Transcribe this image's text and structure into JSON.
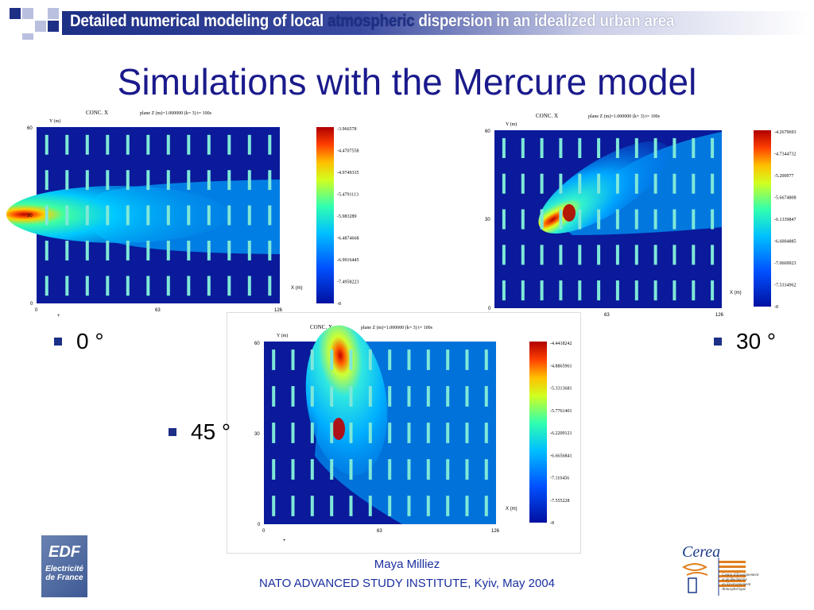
{
  "header": {
    "title_part1": "Detailed numerical modeling of local ",
    "title_part2": "atmospheric",
    "title_part3": " dispersion in an idealized urban area"
  },
  "title": "Simulations with the Mercure model",
  "bullets": [
    "0 °",
    "30 °",
    "45 °"
  ],
  "footer": {
    "author": "Maya Milliez",
    "event": "NATO ADVANCED STUDY INSTITUTE, Kyiv, May 2004"
  },
  "logos": {
    "edf_big": "EDF",
    "edf_small": "Electricité de France",
    "cerea_name": "Cerea",
    "cerea_desc": "Centre d'Enseignement\net de Recherche\nen Environnement\nAtmosphérique"
  },
  "plots": {
    "conc_label": "CONC. X",
    "plane_label": "plane Z (m)=1.000000 (k= 3)  t= 100s",
    "y_axis_label": "Y (m)",
    "x_axis_label": "X (m)",
    "y_ticks": [
      "60",
      "30",
      "0"
    ],
    "x_ticks": [
      "0",
      "63",
      "126"
    ],
    "origin_mark": "+",
    "p0": {
      "colorbar": [
        "-3.966578",
        "-4.4707558",
        "-4.9749335",
        "-5.4791113",
        "-5.983289",
        "-6.4874668",
        "-6.9916445",
        "-7.4958223",
        "-8"
      ]
    },
    "p30": {
      "colorbar": [
        "-4.2679693",
        "-4.7344732",
        "-5.200977",
        "-5.6674808",
        "-6.1339847",
        "-6.6004885",
        "-7.0669923",
        "-7.5334962",
        "-8"
      ]
    },
    "p45": {
      "colorbar": [
        "-4.4418242",
        "-4.8865961",
        "-5.3313681",
        "-5.7761401",
        "-6.2209121",
        "-6.6656841",
        "-7.110456",
        "-7.555228",
        "-8"
      ]
    }
  },
  "colors": {
    "title": "#1a1a8c",
    "header_band": "#1e2f86",
    "footer_text": "#1a2fa0",
    "bullet": "#1e2f86"
  }
}
